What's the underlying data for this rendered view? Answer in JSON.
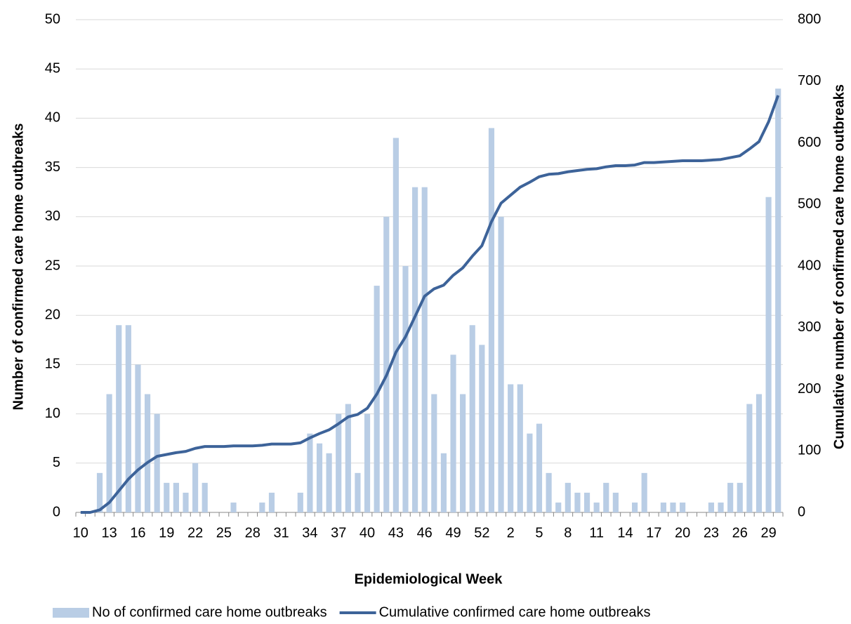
{
  "chart_data": {
    "type": "bar",
    "x_label": "Epidemiological Week",
    "y_label": "Number of confirmed care home outbreaks",
    "y2_label": "Cumulative number of confirmed care home outbreaks",
    "categories": [
      "10",
      null,
      null,
      "13",
      null,
      null,
      "16",
      null,
      null,
      "19",
      null,
      null,
      "22",
      null,
      null,
      "25",
      null,
      null,
      "28",
      null,
      null,
      "31",
      null,
      null,
      "34",
      null,
      null,
      "37",
      null,
      null,
      "40",
      null,
      null,
      "43",
      null,
      null,
      "46",
      null,
      null,
      "49",
      null,
      null,
      "52",
      null,
      null,
      "2",
      null,
      null,
      "5",
      null,
      null,
      "8",
      null,
      null,
      "11",
      null,
      null,
      "14",
      null,
      null,
      "17",
      null,
      null,
      "20",
      null,
      null,
      "23",
      null,
      null,
      "26",
      null,
      null,
      "29",
      null
    ],
    "series": [
      {
        "name": "No of confirmed care home outbreaks",
        "type": "bar",
        "color": "#b9cde5",
        "values": [
          0,
          0,
          4,
          12,
          19,
          19,
          15,
          12,
          10,
          3,
          3,
          2,
          5,
          3,
          0,
          0,
          1,
          0,
          0,
          1,
          2,
          0,
          0,
          2,
          8,
          7,
          6,
          10,
          11,
          4,
          10,
          23,
          30,
          38,
          25,
          33,
          33,
          12,
          6,
          16,
          12,
          19,
          17,
          39,
          30,
          13,
          13,
          8,
          9,
          4,
          1,
          3,
          2,
          2,
          1,
          3,
          2,
          0,
          1,
          4,
          0,
          1,
          1,
          1,
          0,
          0,
          1,
          1,
          3,
          3,
          11,
          12,
          32,
          43
        ]
      },
      {
        "name": "Cumulative confirmed care home outbreaks",
        "type": "line",
        "axis": "y2",
        "color": "#3d6399",
        "values": [
          0,
          0,
          4,
          16,
          35,
          54,
          69,
          81,
          91,
          94,
          97,
          99,
          104,
          107,
          107,
          107,
          108,
          108,
          108,
          109,
          111,
          111,
          111,
          113,
          121,
          128,
          134,
          144,
          155,
          159,
          169,
          192,
          222,
          260,
          285,
          318,
          351,
          363,
          369,
          385,
          397,
          416,
          433,
          472,
          502,
          515,
          528,
          536,
          545,
          549,
          550,
          553,
          555,
          557,
          558,
          561,
          563,
          563,
          564,
          568,
          568,
          569,
          570,
          571,
          571,
          571,
          572,
          573,
          576,
          579,
          590,
          602,
          634,
          677
        ]
      }
    ],
    "ylim": [
      0,
      50
    ],
    "yticks": [
      0,
      5,
      10,
      15,
      20,
      25,
      30,
      35,
      40,
      45,
      50
    ],
    "y2lim": [
      0,
      800
    ],
    "y2ticks": [
      0,
      100,
      200,
      300,
      400,
      500,
      600,
      700,
      800
    ],
    "grid": true,
    "legend": "bottom"
  }
}
